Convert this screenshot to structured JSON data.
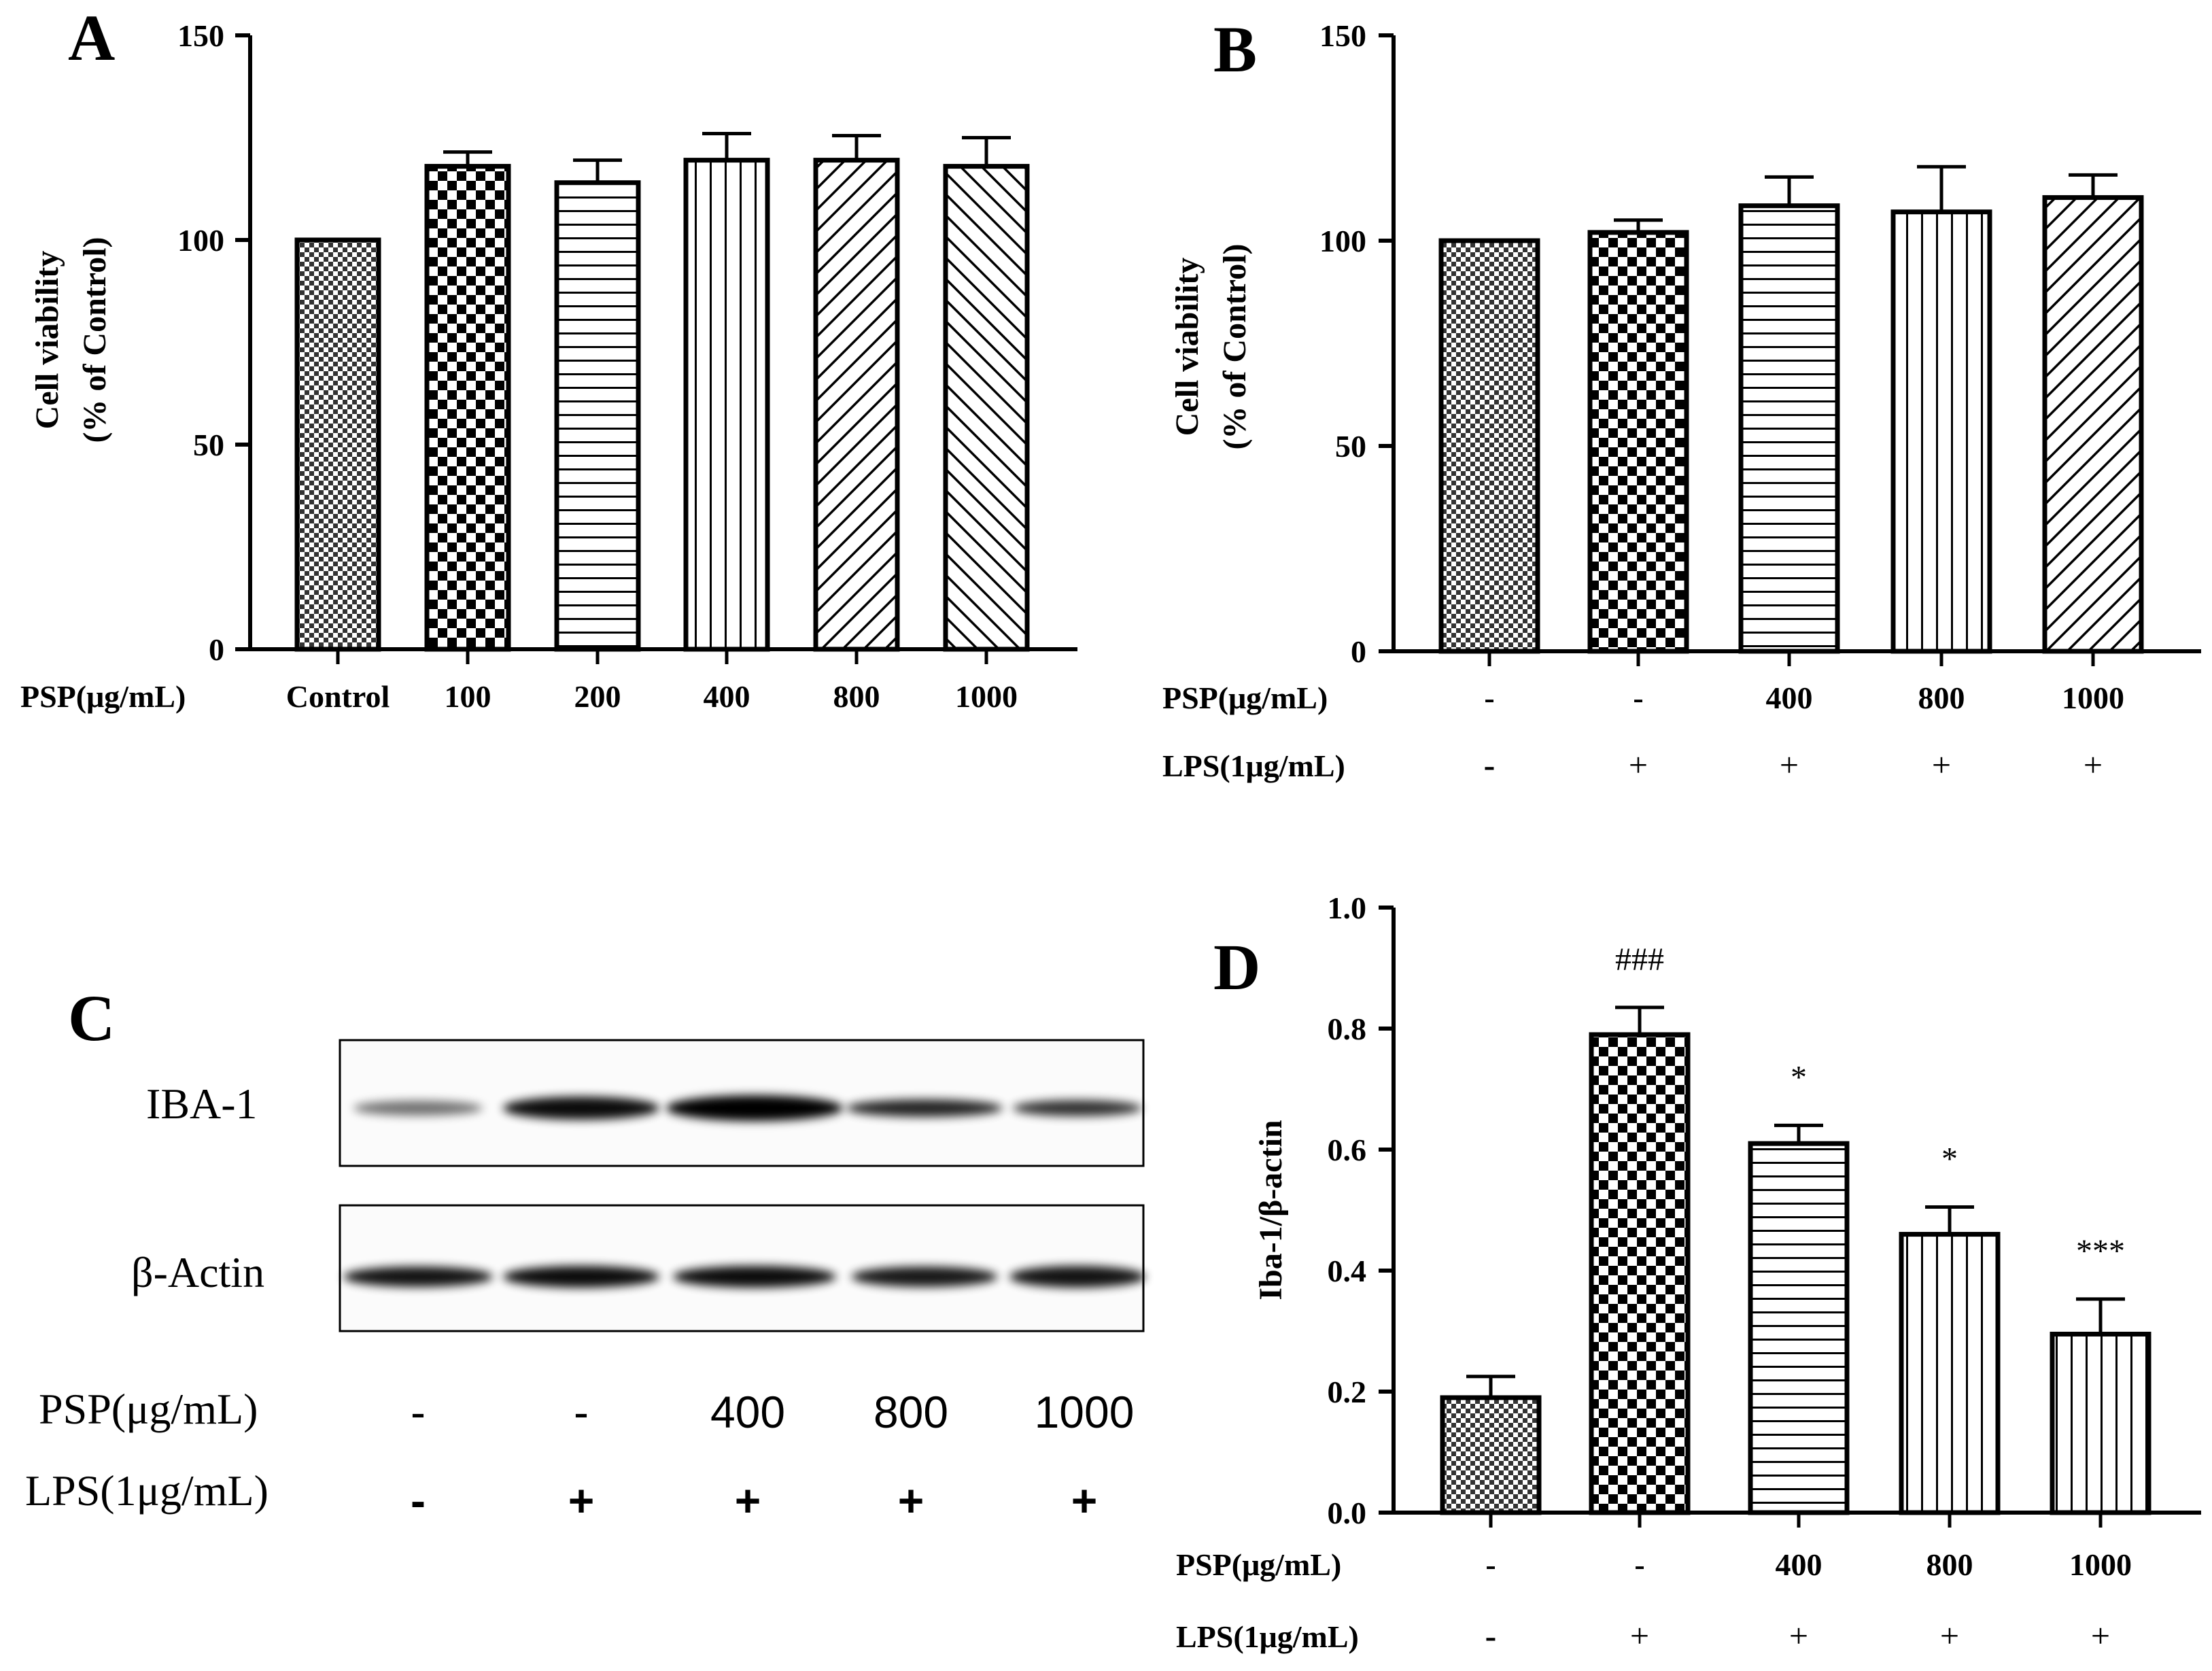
{
  "panels": {
    "A": {
      "label": "A"
    },
    "B": {
      "label": "B"
    },
    "C": {
      "label": "C",
      "bands": [
        "IBA-1",
        "β-Actin"
      ],
      "psp_label": "PSP(μg/mL)",
      "lps_label": "LPS(1μg/mL)",
      "psp": [
        "-",
        "-",
        "400",
        "800",
        "1000"
      ],
      "lps": [
        "-",
        "+",
        "+",
        "+",
        "+"
      ]
    },
    "D": {
      "label": "D"
    }
  },
  "chart_data": [
    {
      "id": "A",
      "type": "bar",
      "ylabel": "Cell viability\n(% of Control)",
      "ylim": [
        0,
        150
      ],
      "yticks": [
        "0",
        "50",
        "100",
        "150"
      ],
      "row_labels": [
        "PSP(μg/mL)"
      ],
      "categories": [
        "Control",
        "100",
        "200",
        "400",
        "800",
        "1000"
      ],
      "values": [
        100,
        118,
        114,
        119.5,
        119.5,
        118
      ],
      "errors": [
        0,
        3.5,
        5.5,
        6.5,
        6,
        7
      ],
      "patterns": [
        "fine-check",
        "check",
        "hlines",
        "vlines",
        "diag-right",
        "diag-left"
      ],
      "annotations": [
        "",
        "",
        "",
        "",
        "",
        ""
      ]
    },
    {
      "id": "B",
      "type": "bar",
      "ylabel": "Cell viability\n(% of Control)",
      "ylim": [
        0,
        150
      ],
      "yticks": [
        "0",
        "50",
        "100",
        "150"
      ],
      "row_labels": [
        "PSP(μg/mL)",
        "LPS(1μg/mL)"
      ],
      "categories": [
        "-",
        "-",
        "400",
        "800",
        "1000"
      ],
      "lps": [
        "-",
        "+",
        "+",
        "+",
        "+"
      ],
      "values": [
        100,
        102,
        108.5,
        107,
        110.5
      ],
      "errors": [
        0,
        3,
        7,
        11,
        5.5
      ],
      "patterns": [
        "fine-check",
        "check",
        "hlines",
        "vlines",
        "diag-right"
      ],
      "annotations": [
        "",
        "",
        "",
        "",
        ""
      ]
    },
    {
      "id": "D",
      "type": "bar",
      "ylabel": "Iba-1/β-actin",
      "ylim": [
        0,
        1.0
      ],
      "yticks": [
        "0.0",
        "0.2",
        "0.4",
        "0.6",
        "0.8",
        "1.0"
      ],
      "row_labels": [
        "PSP(μg/mL)",
        "LPS(1μg/mL)"
      ],
      "categories": [
        "-",
        "-",
        "400",
        "800",
        "1000"
      ],
      "lps": [
        "-",
        "+",
        "+",
        "+",
        "+"
      ],
      "values": [
        0.19,
        0.79,
        0.61,
        0.46,
        0.295
      ],
      "errors": [
        0.035,
        0.045,
        0.03,
        0.045,
        0.058
      ],
      "patterns": [
        "fine-check",
        "check",
        "hlines",
        "vlines",
        "vlines"
      ],
      "annotations": [
        "",
        "###",
        "*",
        "*",
        "***"
      ]
    }
  ]
}
